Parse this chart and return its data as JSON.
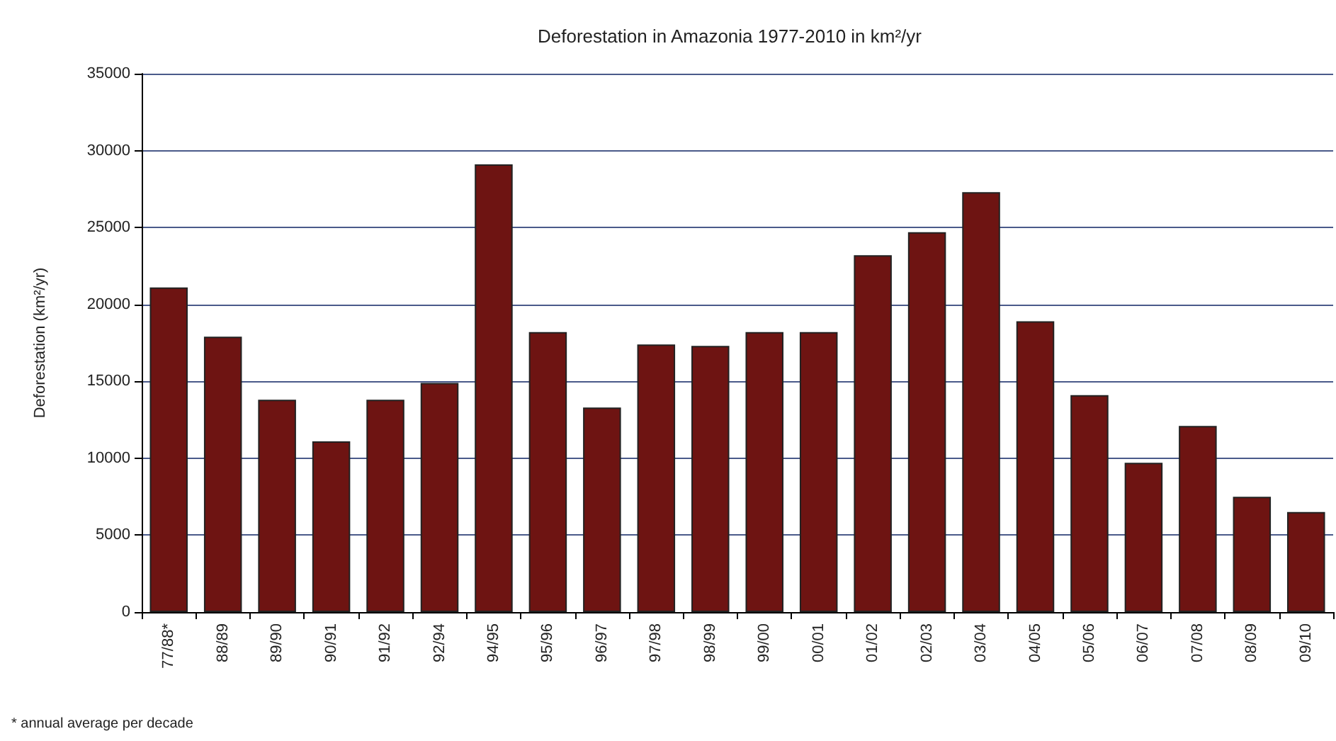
{
  "chart_data": {
    "type": "bar",
    "title": "Deforestation in Amazonia 1977-2010 in km²/yr",
    "ylabel": "Deforestation (km²/yr)",
    "categories": [
      "77/88*",
      "88/89",
      "89/90",
      "90/91",
      "91/92",
      "92/94",
      "94/95",
      "95/96",
      "96/97",
      "97/98",
      "98/99",
      "99/00",
      "00/01",
      "01/02",
      "02/03",
      "03/04",
      "04/05",
      "05/06",
      "06/07",
      "07/08",
      "08/09",
      "09/10"
    ],
    "values": [
      21100,
      17900,
      13800,
      11100,
      13800,
      14900,
      29100,
      18200,
      13300,
      17400,
      17300,
      18200,
      18200,
      23200,
      24700,
      27300,
      18900,
      14100,
      9700,
      12100,
      7500,
      6500
    ],
    "color": "#6e1412",
    "ylim": [
      0,
      35000
    ],
    "yticks": [
      0,
      5000,
      10000,
      15000,
      20000,
      25000,
      30000,
      35000
    ],
    "grid": "y",
    "annotations": [
      "* annual average per decade"
    ]
  }
}
